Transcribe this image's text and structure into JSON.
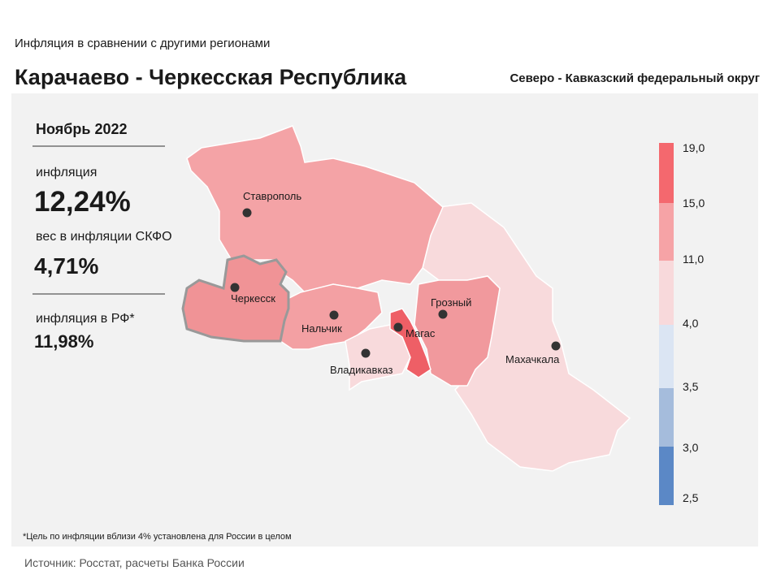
{
  "header": {
    "subtitle": "Инфляция в сравнении с другими регионами",
    "title": "Карачаево - Черкесская Республика",
    "district": "Северо - Кавказский федеральный округ"
  },
  "panel": {
    "period": "Ноябрь 2022",
    "inflation_label": "инфляция",
    "inflation_value": "12,24%",
    "weight_label": "вес в инфляции СКФО",
    "weight_value": "4,71%",
    "rf_label": "инфляция в РФ*",
    "rf_value": "11,98%"
  },
  "map": {
    "cities": [
      "Ставрополь",
      "Черкесск",
      "Нальчик",
      "Владикавказ",
      "Магас",
      "Грозный",
      "Махачкала"
    ]
  },
  "legend": {
    "ticks": [
      "19,0",
      "15,0",
      "11,0",
      "4,0",
      "3,5",
      "3,0",
      "2,5"
    ]
  },
  "footnote": "*Цель по инфляции вблизи 4% установлена для России в целом",
  "source": "Источник: Росстат, расчеты Банка России"
}
